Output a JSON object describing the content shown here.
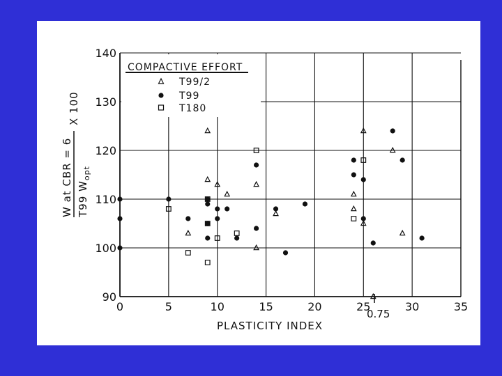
{
  "colors": {
    "background": "#2f2fd6",
    "slide": "#ffffff",
    "ink": "#111111"
  },
  "chart_data": {
    "type": "scatter",
    "title": "",
    "xlabel": "PLASTICITY INDEX",
    "ylabel_line1": "W at CBR = 6",
    "ylabel_line2": "T99 W",
    "ylabel_sub": "opt",
    "ylabel_factor": "X 100",
    "xlim": [
      0,
      35
    ],
    "ylim": [
      90,
      140
    ],
    "xticks": [
      0,
      5,
      10,
      15,
      20,
      25,
      30,
      35
    ],
    "yticks": [
      90,
      100,
      110,
      120,
      130,
      140
    ],
    "grid": true,
    "legend": {
      "title": "COMPACTIVE EFFORT",
      "placement": "top-left",
      "entries": [
        "T99/2",
        "T99",
        "T180"
      ]
    },
    "annotations": [
      {
        "text": "0.75",
        "x": 26,
        "y": 90
      }
    ],
    "series": [
      {
        "name": "T99/2",
        "marker": "triangle",
        "points": [
          [
            7,
            103
          ],
          [
            9,
            124
          ],
          [
            9,
            114
          ],
          [
            10,
            113
          ],
          [
            11,
            111
          ],
          [
            14,
            113
          ],
          [
            14,
            100
          ],
          [
            16,
            107
          ],
          [
            24,
            111
          ],
          [
            24,
            108
          ],
          [
            25,
            124
          ],
          [
            25,
            105
          ],
          [
            26,
            90
          ],
          [
            28,
            120
          ],
          [
            29,
            103
          ]
        ]
      },
      {
        "name": "T99",
        "marker": "circle",
        "points": [
          [
            0,
            110
          ],
          [
            0,
            106
          ],
          [
            0,
            100
          ],
          [
            5,
            110
          ],
          [
            7,
            106
          ],
          [
            9,
            110
          ],
          [
            9,
            109
          ],
          [
            9,
            105
          ],
          [
            9,
            102
          ],
          [
            10,
            108
          ],
          [
            10,
            106
          ],
          [
            11,
            108
          ],
          [
            12,
            102
          ],
          [
            14,
            117
          ],
          [
            14,
            104
          ],
          [
            16,
            108
          ],
          [
            17,
            99
          ],
          [
            19,
            109
          ],
          [
            24,
            118
          ],
          [
            24,
            115
          ],
          [
            25,
            114
          ],
          [
            25,
            106
          ],
          [
            26,
            101
          ],
          [
            28,
            124
          ],
          [
            29,
            118
          ],
          [
            31,
            102
          ]
        ]
      },
      {
        "name": "T180",
        "marker": "square",
        "points": [
          [
            5,
            108
          ],
          [
            7,
            99
          ],
          [
            9,
            110
          ],
          [
            9,
            105
          ],
          [
            9,
            97
          ],
          [
            10,
            102
          ],
          [
            12,
            103
          ],
          [
            14,
            120
          ],
          [
            24,
            106
          ],
          [
            25,
            118
          ]
        ]
      }
    ]
  }
}
